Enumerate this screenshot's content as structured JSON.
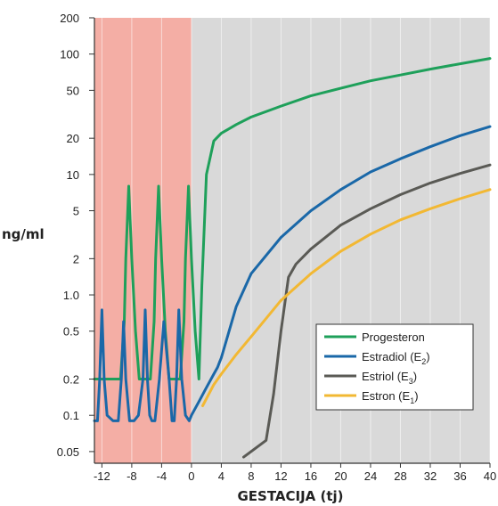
{
  "chart_data": {
    "type": "line",
    "xlabel": "GESTACIJA (tj)",
    "ylabel": "ng/ml",
    "xlim": [
      -13,
      40
    ],
    "ylim": [
      0.04,
      200
    ],
    "y_scale": "log",
    "x_ticks": [
      "-12",
      "-8",
      "-4",
      "0",
      "4",
      "8",
      "12",
      "16",
      "20",
      "24",
      "28",
      "32",
      "36",
      "40"
    ],
    "y_ticks": [
      "200",
      "100",
      "50",
      "20",
      "10",
      "5",
      "2",
      "1.0",
      "0.5",
      "0.2",
      "0.1",
      "0.05"
    ],
    "shaded_region": {
      "x_start": -13,
      "x_end": 0,
      "color": "#f4aea5"
    },
    "plot_background": "#d9d9d9",
    "legend_position": "bottom-right",
    "series": [
      {
        "name": "Progesteron",
        "subscript": "",
        "color": "#1ea05a",
        "x": [
          -13,
          -9.5,
          -9.0,
          -8.8,
          -8.4,
          -8.0,
          -7.5,
          -7.0,
          -5.5,
          -5.0,
          -4.8,
          -4.4,
          -4.0,
          -3.5,
          -3.0,
          -1.5,
          -1.0,
          -0.8,
          -0.4,
          0,
          0.5,
          1.0,
          1.4,
          2,
          3,
          4,
          6,
          8,
          12,
          16,
          20,
          24,
          28,
          32,
          36,
          40
        ],
        "y": [
          0.2,
          0.2,
          0.6,
          2.0,
          8.0,
          2.0,
          0.5,
          0.2,
          0.2,
          0.6,
          2.0,
          8.0,
          2.0,
          0.5,
          0.2,
          0.2,
          0.6,
          2.0,
          8.0,
          2.0,
          0.5,
          0.2,
          1.2,
          10,
          19,
          22,
          26,
          30,
          37,
          45,
          52,
          60,
          67,
          75,
          83,
          92
        ]
      },
      {
        "name": "Estradiol (E",
        "subscript": "2",
        "color": "#1a68a8",
        "x": [
          -13,
          -12.6,
          -12.3,
          -12.0,
          -11.7,
          -11.3,
          -10.5,
          -9.8,
          -9.4,
          -9.1,
          -8.8,
          -8.3,
          -7.7,
          -7.1,
          -6.5,
          -6.2,
          -5.9,
          -5.6,
          -5.3,
          -4.9,
          -4.3,
          -3.7,
          -3.0,
          -2.6,
          -2.3,
          -2.0,
          -1.7,
          -1.3,
          -0.8,
          -0.3,
          0,
          1,
          2,
          3,
          3.5,
          3.8,
          4,
          6,
          8,
          12,
          16,
          20,
          24,
          28,
          32,
          36,
          40
        ],
        "y": [
          0.09,
          0.09,
          0.2,
          0.75,
          0.2,
          0.1,
          0.09,
          0.09,
          0.2,
          0.6,
          0.2,
          0.09,
          0.09,
          0.1,
          0.2,
          0.75,
          0.2,
          0.1,
          0.09,
          0.09,
          0.2,
          0.6,
          0.2,
          0.09,
          0.09,
          0.2,
          0.75,
          0.2,
          0.1,
          0.09,
          0.1,
          0.13,
          0.17,
          0.22,
          0.25,
          0.28,
          0.3,
          0.8,
          1.5,
          3.0,
          5.0,
          7.5,
          10.5,
          13.5,
          17,
          21,
          25
        ]
      },
      {
        "name": "Estriol (E",
        "subscript": "3",
        "color": "#5a5a55",
        "x": [
          7,
          10,
          11,
          12,
          13,
          14,
          16,
          20,
          24,
          28,
          32,
          36,
          40
        ],
        "y": [
          0.045,
          0.062,
          0.15,
          0.5,
          1.4,
          1.8,
          2.4,
          3.8,
          5.2,
          6.8,
          8.5,
          10.2,
          12
        ]
      },
      {
        "name": "Estron   (E",
        "subscript": "1",
        "color": "#f2b833",
        "x": [
          1.5,
          3,
          4,
          6,
          8,
          12,
          16,
          20,
          24,
          28,
          32,
          36,
          40
        ],
        "y": [
          0.12,
          0.18,
          0.22,
          0.32,
          0.45,
          0.9,
          1.5,
          2.3,
          3.2,
          4.2,
          5.2,
          6.3,
          7.5
        ]
      }
    ]
  }
}
